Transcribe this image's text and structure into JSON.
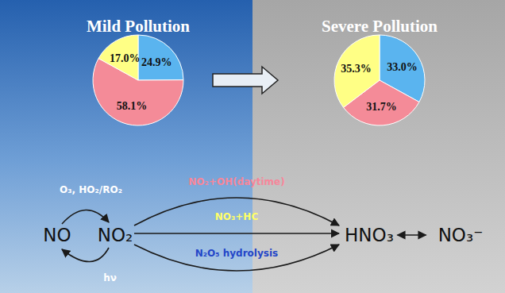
{
  "chart_data": [
    {
      "type": "pie",
      "title": "Mild Pollution",
      "values": [
        24.9,
        58.1,
        17.0
      ],
      "value_labels": [
        "24.9%",
        "58.1%",
        "17.0%"
      ],
      "colors": [
        "#5ab4ef",
        "#f48b98",
        "#ffff85"
      ],
      "data_labels": true
    },
    {
      "type": "pie",
      "title": "Severe Pollution",
      "values": [
        33.0,
        31.7,
        35.3
      ],
      "value_labels": [
        "33.0%",
        "31.7%",
        "35.3%"
      ],
      "colors": [
        "#5ab4ef",
        "#f48b98",
        "#ffff85"
      ],
      "data_labels": true
    }
  ],
  "diagram": {
    "nodes": [
      {
        "label": "NO"
      },
      {
        "label": "NO₂"
      },
      {
        "label": "HNO₃"
      },
      {
        "label": "NO₃⁻"
      }
    ],
    "edges": [
      {
        "from": 0,
        "to": 1,
        "label": "O₃, HO₂/RO₂",
        "color": "#ffffff"
      },
      {
        "from": 1,
        "to": 0,
        "label": "hν",
        "color": "#ffffff"
      },
      {
        "from": 1,
        "to": 2,
        "label": "NO₂+OH(daytime)",
        "color": "#f7869a"
      },
      {
        "from": 1,
        "to": 2,
        "label": "NO₃+HC",
        "color": "#ffff66"
      },
      {
        "from": 1,
        "to": 2,
        "label": "N₂O₅ hydrolysis",
        "color": "#2446c8"
      },
      {
        "from": 2,
        "to": 3,
        "bidirectional": true
      }
    ]
  }
}
